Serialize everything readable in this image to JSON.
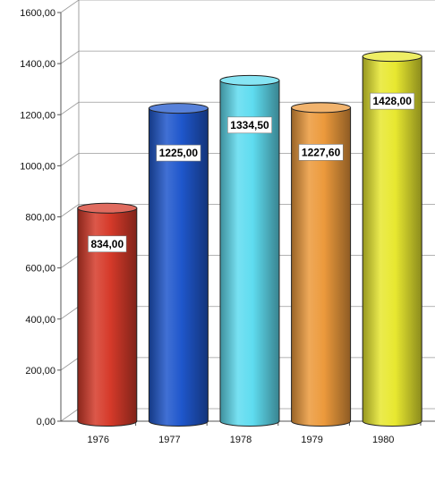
{
  "chart_data": {
    "type": "bar",
    "title": "",
    "xlabel": "",
    "ylabel": "",
    "categories": [
      "1976",
      "1977",
      "1978",
      "1979",
      "1980"
    ],
    "values": [
      834.0,
      1225.0,
      1334.5,
      1227.6,
      1428.0
    ],
    "value_labels": [
      "834,00",
      "1225,00",
      "1334,50",
      "1227,60",
      "1428,00"
    ],
    "ylim": [
      0,
      1600
    ],
    "yticks": [
      0,
      200,
      400,
      600,
      800,
      1000,
      1200,
      1400,
      1600
    ],
    "ytick_labels": [
      "0,00",
      "200,00",
      "400,00",
      "600,00",
      "800,00",
      "1000,00",
      "1200,00",
      "1400,00",
      "1600,00"
    ],
    "grid": true,
    "legend": "none",
    "style": "3d-cylinder",
    "colors": [
      "#d63a2a",
      "#1f57cc",
      "#5fdcf0",
      "#ec9a3c",
      "#e8e830"
    ]
  }
}
